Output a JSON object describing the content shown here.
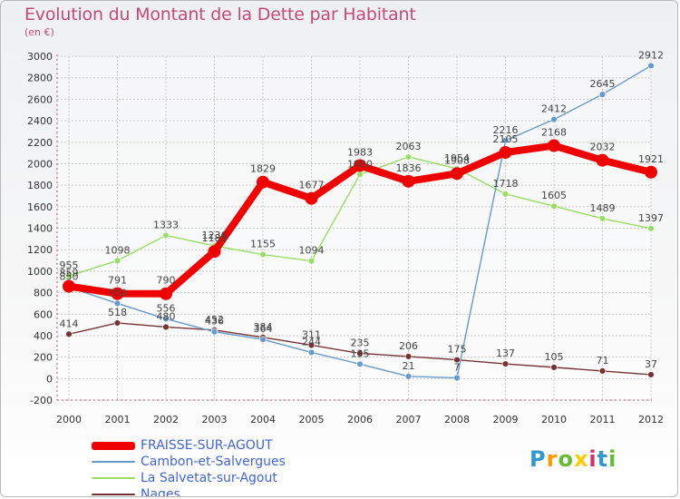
{
  "chart_data": {
    "type": "line",
    "title": "Evolution du Montant de la Dette par Habitant",
    "subtitle": "(en €)",
    "xlabel": "",
    "ylabel": "",
    "ylim": [
      -200,
      3000
    ],
    "y_ticks": [
      -200,
      0,
      200,
      400,
      600,
      800,
      1000,
      1200,
      1400,
      1600,
      1800,
      2000,
      2200,
      2400,
      2600,
      2800,
      3000
    ],
    "grid": true,
    "legend_position": "bottom-left",
    "categories": [
      "2000",
      "2001",
      "2002",
      "2003",
      "2004",
      "2005",
      "2006",
      "2007",
      "2008",
      "2009",
      "2010",
      "2011",
      "2012"
    ],
    "series": [
      {
        "name": "FRAISSE-SUR-AGOUT",
        "color": "#ee0000",
        "emphasis": true,
        "values": [
          859,
          791,
          790,
          1183,
          1829,
          1677,
          1983,
          1836,
          1908,
          2105,
          2168,
          2032,
          1921
        ]
      },
      {
        "name": "Cambon-et-Salvergues",
        "color": "#6699cc",
        "values": [
          850,
          700,
          556,
          436,
          364,
          244,
          135,
          21,
          7,
          2216,
          2412,
          2645,
          2912
        ]
      },
      {
        "name": "La Salvetat-sur-Agout",
        "color": "#99dd66",
        "values": [
          955,
          1098,
          1333,
          1236,
          1155,
          1094,
          1900,
          2063,
          1954,
          1718,
          1605,
          1489,
          1397
        ]
      },
      {
        "name": "Nages",
        "color": "#773333",
        "values": [
          414,
          518,
          480,
          452,
          384,
          311,
          235,
          206,
          175,
          137,
          105,
          71,
          37
        ]
      }
    ]
  },
  "brand": {
    "name": "Proxiti",
    "letters": [
      "P",
      "r",
      "o",
      "x",
      "i",
      "t",
      "i"
    ],
    "letter_colors": [
      "#3399cc",
      "#ff9900",
      "#66bb33",
      "#ffcc00",
      "#cc3366",
      "#3399cc",
      "#66bb33"
    ]
  }
}
